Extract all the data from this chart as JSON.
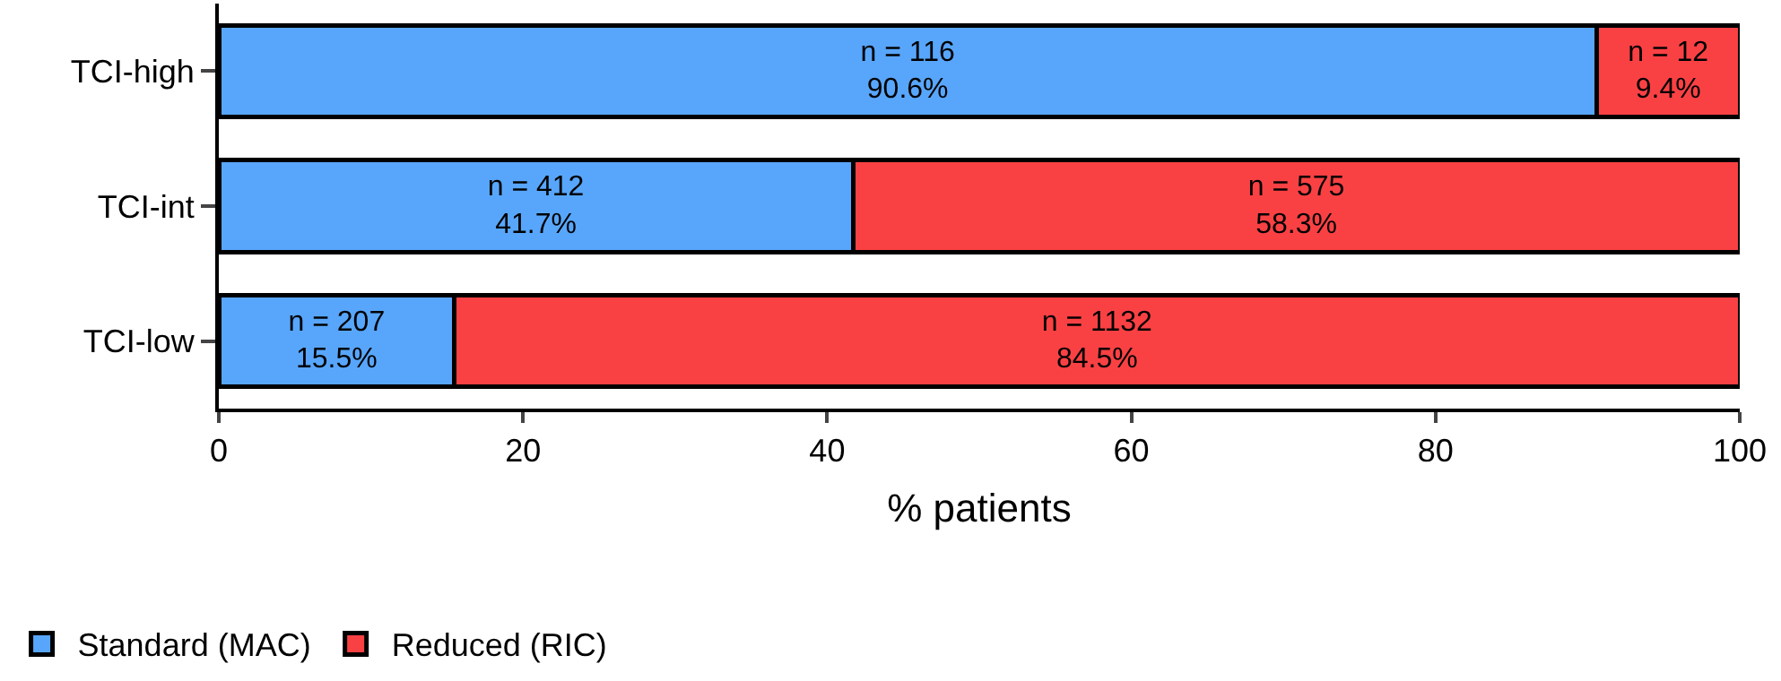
{
  "chart_data": {
    "type": "bar",
    "orientation": "horizontal",
    "stacked": true,
    "xlabel": "% patients",
    "categories": [
      "TCI-high",
      "TCI-int",
      "TCI-low"
    ],
    "series": [
      {
        "name": "Standard (MAC)",
        "color": "#58a6fb",
        "values": [
          90.6,
          41.7,
          15.5
        ],
        "value_labels": [
          "n = 116\n90.6%",
          "n = 412\n41.7%",
          "n = 207\n15.5%"
        ]
      },
      {
        "name": "Reduced (RIC)",
        "color": "#f94144",
        "values": [
          9.4,
          58.3,
          84.5
        ],
        "value_labels": [
          "n = 12\n9.4%",
          "n = 575\n58.3%",
          "n = 1132\n84.5%"
        ]
      }
    ],
    "xlim": [
      0,
      100
    ],
    "xticks": [
      0,
      20,
      40,
      60,
      80,
      100
    ],
    "legend": "bottom left"
  }
}
